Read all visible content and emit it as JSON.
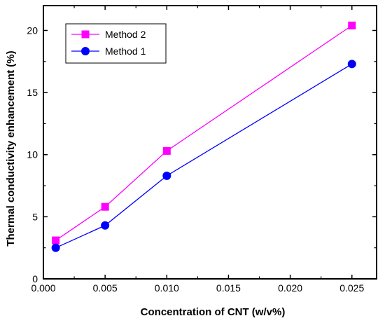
{
  "chart_data": {
    "type": "line",
    "title": "",
    "xlabel": "Concentration of CNT (w/v%)",
    "ylabel": "Thermal conductivity enhancement (%)",
    "xlim": [
      0.0,
      0.027
    ],
    "ylim": [
      0,
      22
    ],
    "xticks": [
      0.0,
      0.005,
      0.01,
      0.015,
      0.02,
      0.025
    ],
    "xtick_labels": [
      "0.000",
      "0.005",
      "0.010",
      "0.015",
      "0.020",
      "0.025"
    ],
    "yticks": [
      0,
      5,
      10,
      15,
      20
    ],
    "ytick_labels": [
      "0",
      "5",
      "10",
      "15",
      "20"
    ],
    "grid": false,
    "legend_position": "top-left",
    "series": [
      {
        "name": "Method 2",
        "color": "#ff00ff",
        "marker": "square",
        "x": [
          0.001,
          0.005,
          0.01,
          0.025
        ],
        "y": [
          3.1,
          5.8,
          10.3,
          20.4
        ]
      },
      {
        "name": "Method 1",
        "color": "#0000ff",
        "marker": "circle",
        "x": [
          0.001,
          0.005,
          0.01,
          0.025
        ],
        "y": [
          2.5,
          4.3,
          8.3,
          17.3
        ]
      }
    ]
  }
}
